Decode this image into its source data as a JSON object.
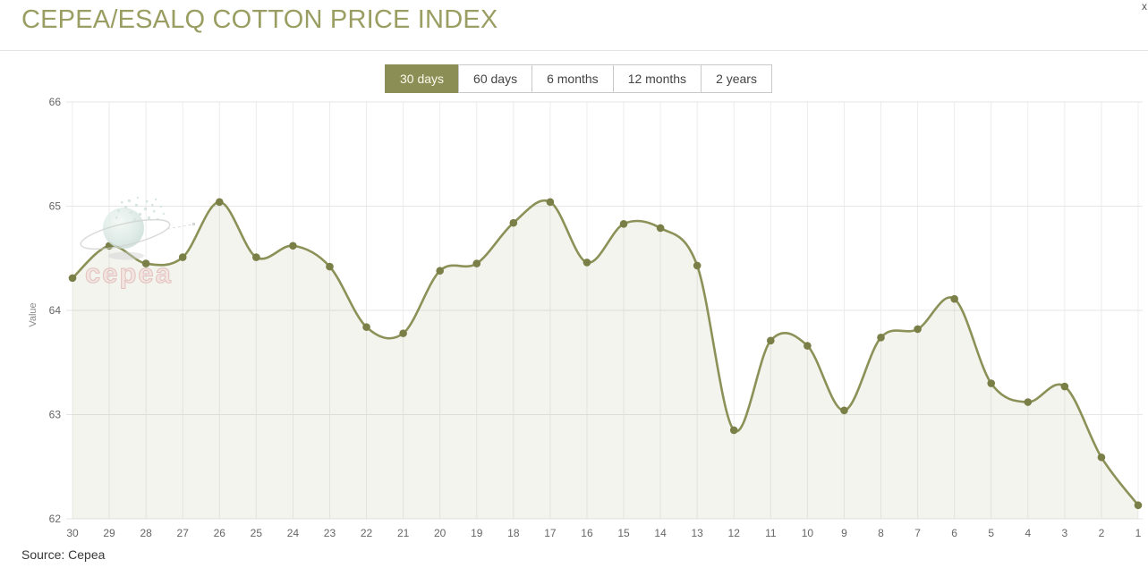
{
  "header": {
    "title": "CEPEA/ESALQ COTTON PRICE INDEX",
    "close_glyph": "x"
  },
  "range_buttons": [
    {
      "label": "30 days",
      "selected": true
    },
    {
      "label": "60 days",
      "selected": false
    },
    {
      "label": "6 months",
      "selected": false
    },
    {
      "label": "12 months",
      "selected": false
    },
    {
      "label": "2 years",
      "selected": false
    }
  ],
  "watermark": {
    "text": "cepea"
  },
  "source_note": "Source: Cepea",
  "colors": {
    "accent_olive": "#8c8f55",
    "title_olive": "#9a9e62",
    "line": "#8b9157",
    "marker": "#7a7f47",
    "area_fill": "rgba(141,146,91,0.10)",
    "grid": "#e6e6e6",
    "axis_text": "#666666"
  },
  "chart_data": {
    "type": "area",
    "title": "CEPEA/ESALQ COTTON PRICE INDEX",
    "xlabel": "",
    "ylabel": "Value",
    "categories": [
      "30",
      "29",
      "28",
      "27",
      "26",
      "25",
      "24",
      "23",
      "22",
      "21",
      "20",
      "19",
      "18",
      "17",
      "16",
      "15",
      "14",
      "13",
      "12",
      "11",
      "10",
      "9",
      "8",
      "7",
      "6",
      "5",
      "4",
      "3",
      "2",
      "1"
    ],
    "values": [
      64.31,
      64.62,
      64.45,
      64.51,
      65.04,
      64.51,
      64.62,
      64.42,
      63.84,
      63.78,
      64.38,
      64.45,
      64.84,
      65.04,
      64.46,
      64.83,
      64.79,
      64.43,
      62.85,
      63.71,
      63.66,
      63.04,
      63.74,
      63.82,
      64.11,
      63.3,
      63.12,
      63.27,
      62.59,
      62.13
    ],
    "ylim": [
      62,
      66
    ],
    "yticks": [
      62,
      63,
      64,
      65,
      66
    ],
    "grid": true,
    "legend": false,
    "smooth": true
  }
}
